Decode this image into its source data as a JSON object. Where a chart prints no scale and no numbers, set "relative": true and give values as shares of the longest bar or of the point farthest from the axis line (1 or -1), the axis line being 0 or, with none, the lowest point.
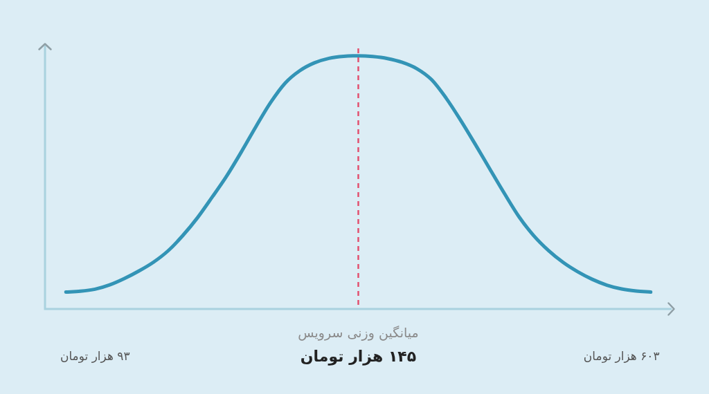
{
  "chart_data": {
    "type": "line",
    "relative": true,
    "categories": [
      null,
      null,
      "۹۳ هزار تومان",
      null,
      null,
      null,
      null,
      null,
      null,
      null,
      null,
      null,
      null,
      null,
      null,
      null,
      null,
      null,
      null,
      null,
      "۱۴۵ هزار تومان",
      null,
      null,
      null,
      null,
      null,
      null,
      null,
      null,
      null,
      null,
      null,
      null,
      null,
      null,
      null,
      null,
      null,
      "۶۰۳ هزار تومان",
      null,
      null
    ],
    "values": [
      0.067,
      0.07,
      0.078,
      0.095,
      0.12,
      0.15,
      0.185,
      0.23,
      0.29,
      0.36,
      0.441,
      0.525,
      0.62,
      0.72,
      0.815,
      0.892,
      0.941,
      0.972,
      0.99,
      0.998,
      1,
      0.997,
      0.989,
      0.974,
      0.949,
      0.906,
      0.833,
      0.745,
      0.65,
      0.552,
      0.455,
      0.363,
      0.289,
      0.231,
      0.184,
      0.147,
      0.117,
      0.094,
      0.079,
      0.071,
      0.067
    ],
    "color": "#3394b6",
    "marker": "none",
    "ref_lines": [
      {
        "axis": "x",
        "value": "۱۴۵ هزار تومان",
        "label": "میانگین وزنی سرویس",
        "color": "#e2506f",
        "line_style": "dashed"
      }
    ]
  }
}
